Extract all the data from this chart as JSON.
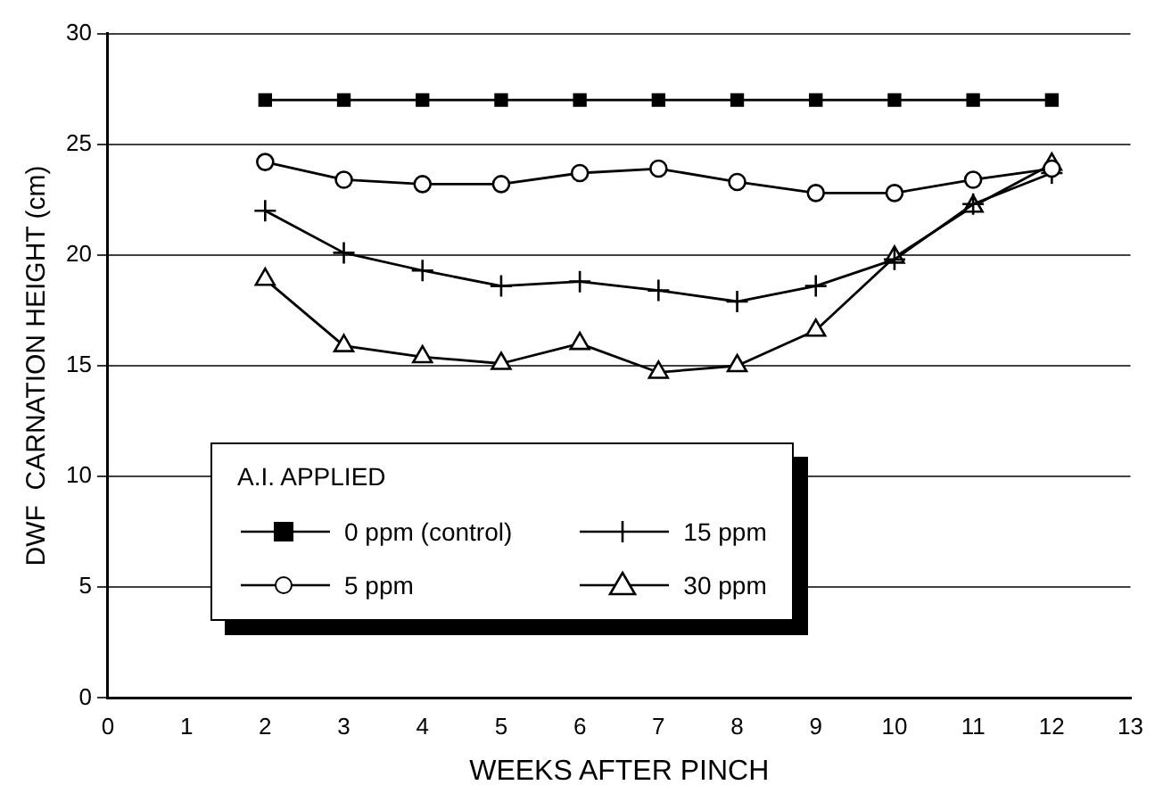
{
  "chart_data": {
    "type": "line",
    "xlabel": "WEEKS AFTER PINCH",
    "ylabel": "DWF  CARNATION HEIGHT (cm)",
    "legend_title": "A.I. APPLIED",
    "x": [
      2,
      3,
      4,
      5,
      6,
      7,
      8,
      9,
      10,
      11,
      12
    ],
    "series": [
      {
        "name": "0 ppm (control)",
        "color": "#000000",
        "marker": "square",
        "values": [
          27,
          27,
          27,
          27,
          27,
          27,
          27,
          27,
          27,
          27,
          27
        ]
      },
      {
        "name": "5 ppm",
        "color": "#000000",
        "marker": "circle",
        "values": [
          24.2,
          23.4,
          23.2,
          23.2,
          23.7,
          23.9,
          23.3,
          22.8,
          22.8,
          23.4,
          23.9
        ]
      },
      {
        "name": "15 ppm",
        "color": "#000000",
        "marker": "cross",
        "values": [
          22,
          20.1,
          19.3,
          18.6,
          18.8,
          18.4,
          17.9,
          18.6,
          19.8,
          22.3,
          23.7
        ]
      },
      {
        "name": "30 ppm",
        "color": "#000000",
        "marker": "triangle",
        "values": [
          18.9,
          15.9,
          15.4,
          15.1,
          16,
          14.7,
          15,
          16.6,
          19.9,
          22.2,
          24.1
        ]
      }
    ],
    "xlim": [
      0,
      13
    ],
    "xticks": [
      0,
      1,
      2,
      3,
      4,
      5,
      6,
      7,
      8,
      9,
      10,
      11,
      12,
      13
    ],
    "ylim": [
      0,
      30
    ],
    "yticks": [
      0,
      5,
      10,
      15,
      20,
      25,
      30
    ],
    "grid": "y",
    "legend": "bottom left",
    "line_style": "solid"
  }
}
